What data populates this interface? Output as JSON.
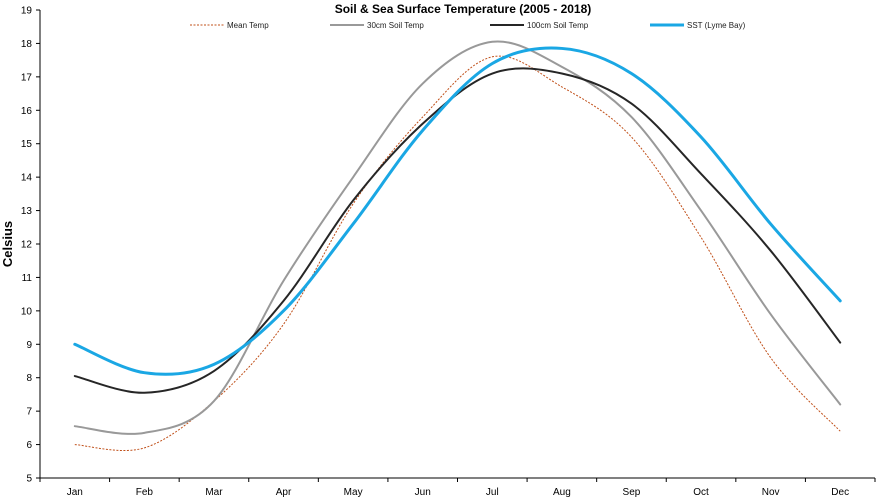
{
  "chart_data": {
    "type": "line",
    "title": "Soil & Sea Surface Temperature (2005 - 2018)",
    "xlabel": "",
    "ylabel": "Celsius",
    "categories": [
      "Jan",
      "Feb",
      "Mar",
      "Apr",
      "May",
      "Jun",
      "Jul",
      "Aug",
      "Sep",
      "Oct",
      "Nov",
      "Dec"
    ],
    "ylim": [
      5,
      19
    ],
    "yticks": [
      "5",
      "6",
      "7",
      "8",
      "9",
      "10",
      "11",
      "12",
      "13",
      "14",
      "15",
      "16",
      "17",
      "18",
      "19"
    ],
    "grid": false,
    "legend_position": "top",
    "series": [
      {
        "name": "Mean Temp",
        "color": "#c0501a",
        "dash": "dotted",
        "width": 1,
        "values": [
          6.0,
          5.9,
          7.3,
          9.6,
          13.2,
          15.8,
          17.6,
          16.7,
          15.2,
          12.2,
          8.6,
          6.4
        ]
      },
      {
        "name": "30cm Soil Temp",
        "color": "#999999",
        "dash": "solid",
        "width": 2,
        "values": [
          6.55,
          6.35,
          7.3,
          10.9,
          14.0,
          16.8,
          18.05,
          17.3,
          15.8,
          13.0,
          9.9,
          7.2
        ]
      },
      {
        "name": "100cm Soil Temp",
        "color": "#262626",
        "dash": "solid",
        "width": 2,
        "values": [
          8.05,
          7.55,
          8.2,
          10.3,
          13.3,
          15.6,
          17.1,
          17.1,
          16.2,
          14.1,
          11.8,
          9.05
        ]
      },
      {
        "name": "SST (Lyme Bay)",
        "color": "#1aa7e4",
        "dash": "solid",
        "width": 3,
        "values": [
          9.0,
          8.15,
          8.4,
          10.0,
          12.6,
          15.4,
          17.4,
          17.85,
          17.1,
          15.2,
          12.6,
          10.3
        ]
      }
    ]
  }
}
